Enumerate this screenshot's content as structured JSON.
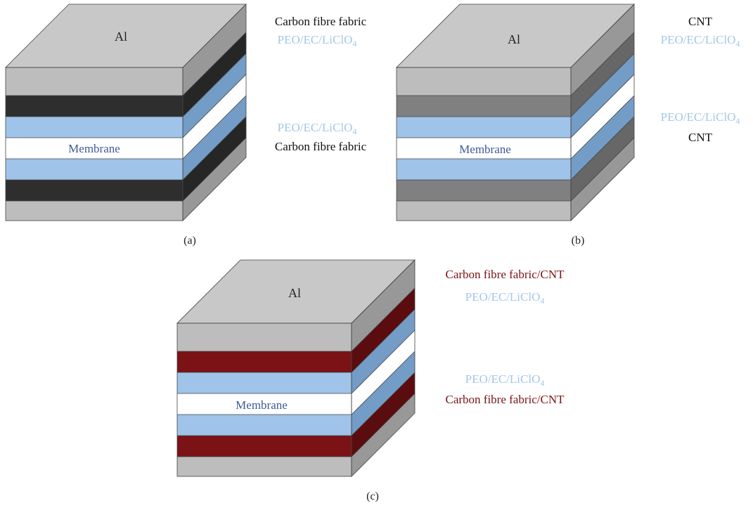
{
  "colors": {
    "al_top": "#c8c8c8",
    "al_front": "#bdbdbd",
    "al_side": "#989898",
    "membrane_front": "#ffffff",
    "membrane_side": "#ffffff",
    "electrolyte_front": "#9fc3e9",
    "electrolyte_side": "#739cc6",
    "carbon_front": "#2e2e2e",
    "carbon_side": "#262626",
    "cnt_front": "#808080",
    "cnt_side": "#676767",
    "hybrid_front": "#7b1316",
    "hybrid_side": "#5b0c0f",
    "electrolyte_label": "#a5c6e8",
    "membrane_label": "#3d5a99",
    "hybrid_label": "#7b1316",
    "black_label": "#111111"
  },
  "panels": [
    {
      "caption": "(a)",
      "top_label": "Al",
      "membrane_label": "Membrane",
      "electrode": "carbon",
      "labels": [
        {
          "text": "Carbon fibre fabric",
          "color": "black",
          "sub": ""
        },
        {
          "text": "PEO/EC/LiClO",
          "color": "electrolyte",
          "sub": "4"
        },
        {
          "text": "PEO/EC/LiClO",
          "color": "electrolyte",
          "sub": "4"
        },
        {
          "text": "Carbon fibre fabric",
          "color": "black",
          "sub": ""
        }
      ]
    },
    {
      "caption": "(b)",
      "top_label": "Al",
      "membrane_label": "Membrane",
      "electrode": "cnt",
      "labels": [
        {
          "text": "CNT",
          "color": "black",
          "sub": ""
        },
        {
          "text": "PEO/EC/LiClO",
          "color": "electrolyte",
          "sub": "4"
        },
        {
          "text": "PEO/EC/LiClO",
          "color": "electrolyte",
          "sub": "4"
        },
        {
          "text": "CNT",
          "color": "black",
          "sub": ""
        }
      ]
    },
    {
      "caption": "(c)",
      "top_label": "Al",
      "membrane_label": "Membrane",
      "electrode": "hybrid",
      "labels": [
        {
          "text": "Carbon fibre fabric/CNT",
          "color": "hybrid",
          "sub": ""
        },
        {
          "text": "PEO/EC/LiClO",
          "color": "electrolyte",
          "sub": "4"
        },
        {
          "text": "PEO/EC/LiClO",
          "color": "electrolyte",
          "sub": "4"
        },
        {
          "text": "Carbon fibre fabric/CNT",
          "color": "hybrid",
          "sub": ""
        }
      ]
    }
  ]
}
